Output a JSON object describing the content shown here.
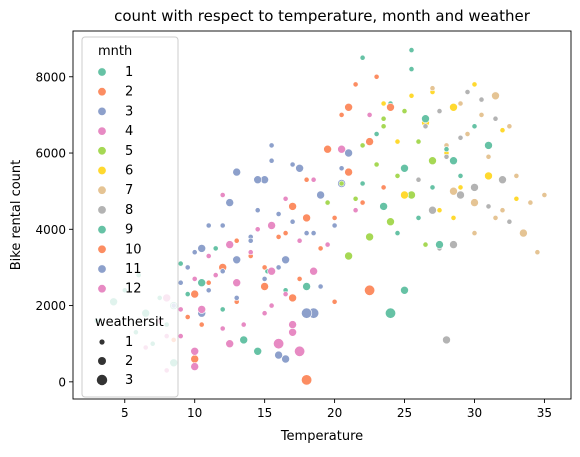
{
  "chart_data": {
    "type": "scatter",
    "title": "count with respect to temperature, month and weather",
    "xlabel": "Temperature",
    "ylabel": "Bike rental count",
    "xlim": [
      1.3,
      36.9
    ],
    "ylim": [
      -450,
      9200
    ],
    "xticks": [
      5,
      10,
      15,
      20,
      25,
      30,
      35
    ],
    "yticks": [
      0,
      2000,
      4000,
      6000,
      8000
    ],
    "grid": false,
    "legend": {
      "placement": "upper-left",
      "hue_title": "mnth",
      "size_title": "weathersit",
      "months": [
        {
          "label": "1",
          "color": "#66c2a5"
        },
        {
          "label": "2",
          "color": "#fc8d62"
        },
        {
          "label": "3",
          "color": "#8da0cb"
        },
        {
          "label": "4",
          "color": "#e78ac3"
        },
        {
          "label": "5",
          "color": "#a6d854"
        },
        {
          "label": "6",
          "color": "#ffd92f"
        },
        {
          "label": "7",
          "color": "#e5c494"
        },
        {
          "label": "8",
          "color": "#b3b3b3"
        },
        {
          "label": "9",
          "color": "#66c2a5"
        },
        {
          "label": "10",
          "color": "#fc8d62"
        },
        {
          "label": "11",
          "color": "#8da0cb"
        },
        {
          "label": "12",
          "color": "#e78ac3"
        }
      ],
      "weathersit": [
        {
          "label": "1",
          "level": 1
        },
        {
          "label": "2",
          "level": 2
        },
        {
          "label": "3",
          "level": 3
        }
      ]
    },
    "series": [
      {
        "mnth": 1,
        "points": [
          [
            3.0,
            1600,
            1
          ],
          [
            4.2,
            2100,
            2
          ],
          [
            5.0,
            2400,
            1
          ],
          [
            5.8,
            1300,
            1
          ],
          [
            6.5,
            1800,
            2
          ],
          [
            7.0,
            1000,
            1
          ],
          [
            7.5,
            2200,
            1
          ],
          [
            8.0,
            1500,
            1
          ],
          [
            8.5,
            2000,
            2
          ],
          [
            9.0,
            3100,
            1
          ],
          [
            9.5,
            2300,
            1
          ],
          [
            10.5,
            2600,
            2
          ],
          [
            11.5,
            3500,
            1
          ],
          [
            12.0,
            1900,
            1
          ],
          [
            13.5,
            1100,
            2
          ],
          [
            14.5,
            800,
            2
          ],
          [
            15.2,
            2900,
            1
          ],
          [
            16.5,
            2400,
            1
          ],
          [
            18.0,
            2500,
            2
          ],
          [
            8.5,
            500,
            2
          ],
          [
            6.0,
            2800,
            1
          ]
        ]
      },
      {
        "mnth": 2,
        "points": [
          [
            8.5,
            1100,
            1
          ],
          [
            9.5,
            1700,
            1
          ],
          [
            10.0,
            2300,
            2
          ],
          [
            10.5,
            1500,
            1
          ],
          [
            11.0,
            2600,
            1
          ],
          [
            12.0,
            3000,
            2
          ],
          [
            13.0,
            2100,
            1
          ],
          [
            14.0,
            3300,
            1
          ],
          [
            15.0,
            2500,
            2
          ],
          [
            16.5,
            3900,
            1
          ],
          [
            17.5,
            2700,
            1
          ],
          [
            18.0,
            4300,
            2
          ],
          [
            10.0,
            600,
            2
          ],
          [
            13.0,
            3700,
            1
          ],
          [
            18.0,
            50,
            3
          ]
        ]
      },
      {
        "mnth": 3,
        "points": [
          [
            8.5,
            2000,
            1
          ],
          [
            9.5,
            3000,
            1
          ],
          [
            10.5,
            3500,
            2
          ],
          [
            11.0,
            2400,
            1
          ],
          [
            12.0,
            4100,
            1
          ],
          [
            13.0,
            3200,
            2
          ],
          [
            14.0,
            3800,
            1
          ],
          [
            14.5,
            4500,
            1
          ],
          [
            15.0,
            5300,
            2
          ],
          [
            16.0,
            3000,
            1
          ],
          [
            17.0,
            4200,
            1
          ],
          [
            17.5,
            5600,
            2
          ],
          [
            18.5,
            3900,
            1
          ],
          [
            19.5,
            4700,
            1
          ],
          [
            20.5,
            5200,
            2
          ],
          [
            16.5,
            600,
            2
          ],
          [
            18.5,
            1800,
            3
          ],
          [
            15.5,
            5800,
            1
          ],
          [
            13.0,
            5500,
            2
          ],
          [
            19.0,
            2500,
            1
          ]
        ]
      },
      {
        "mnth": 4,
        "points": [
          [
            8.0,
            1200,
            1
          ],
          [
            9.0,
            1900,
            1
          ],
          [
            10.0,
            800,
            2
          ],
          [
            11.5,
            2800,
            1
          ],
          [
            12.5,
            3600,
            2
          ],
          [
            13.5,
            1500,
            1
          ],
          [
            14.5,
            4000,
            1
          ],
          [
            15.5,
            2900,
            2
          ],
          [
            16.5,
            4800,
            1
          ],
          [
            17.0,
            1500,
            2
          ],
          [
            18.5,
            5300,
            1
          ],
          [
            19.5,
            3600,
            1
          ],
          [
            20.5,
            6100,
            2
          ],
          [
            21.5,
            4500,
            1
          ],
          [
            22.5,
            7000,
            1
          ],
          [
            10.0,
            400,
            2
          ],
          [
            15.5,
            2000,
            1
          ],
          [
            17.5,
            800,
            3
          ],
          [
            12.0,
            4900,
            1
          ]
        ]
      },
      {
        "mnth": 5,
        "points": [
          [
            19.5,
            4700,
            1
          ],
          [
            20.5,
            5200,
            1
          ],
          [
            21.0,
            3300,
            2
          ],
          [
            21.5,
            4800,
            1
          ],
          [
            22.0,
            6200,
            1
          ],
          [
            22.5,
            3800,
            2
          ],
          [
            23.0,
            5700,
            1
          ],
          [
            23.5,
            6700,
            1
          ],
          [
            24.0,
            4200,
            2
          ],
          [
            24.5,
            5400,
            1
          ],
          [
            25.0,
            7100,
            1
          ],
          [
            25.5,
            4900,
            2
          ],
          [
            26.0,
            6300,
            1
          ],
          [
            26.5,
            3600,
            1
          ],
          [
            27.0,
            5800,
            2
          ],
          [
            23.5,
            6900,
            1
          ]
        ]
      },
      {
        "mnth": 6,
        "points": [
          [
            23.5,
            7300,
            1
          ],
          [
            24.5,
            6300,
            1
          ],
          [
            25.0,
            4900,
            2
          ],
          [
            25.5,
            7500,
            1
          ],
          [
            26.0,
            5300,
            1
          ],
          [
            26.5,
            6800,
            2
          ],
          [
            27.0,
            7600,
            1
          ],
          [
            27.5,
            4500,
            1
          ],
          [
            28.0,
            6000,
            1
          ],
          [
            28.5,
            7200,
            2
          ],
          [
            29.0,
            5100,
            1
          ],
          [
            29.5,
            6500,
            1
          ],
          [
            30.0,
            7800,
            1
          ],
          [
            31.0,
            5400,
            2
          ],
          [
            32.0,
            6600,
            1
          ],
          [
            33.0,
            4800,
            1
          ],
          [
            30.5,
            7000,
            1
          ],
          [
            28.5,
            4300,
            1
          ]
        ]
      },
      {
        "mnth": 7,
        "points": [
          [
            27.0,
            7700,
            1
          ],
          [
            28.0,
            6200,
            1
          ],
          [
            28.5,
            5000,
            2
          ],
          [
            29.0,
            7300,
            1
          ],
          [
            29.5,
            6500,
            1
          ],
          [
            30.0,
            4700,
            2
          ],
          [
            30.5,
            7000,
            1
          ],
          [
            31.0,
            5900,
            1
          ],
          [
            31.5,
            7500,
            2
          ],
          [
            32.0,
            4500,
            1
          ],
          [
            32.5,
            6700,
            1
          ],
          [
            33.0,
            5400,
            1
          ],
          [
            33.5,
            3900,
            2
          ],
          [
            34.0,
            4700,
            1
          ],
          [
            35.0,
            4900,
            1
          ],
          [
            34.5,
            3400,
            1
          ],
          [
            30.0,
            3900,
            1
          ],
          [
            31.5,
            4300,
            1
          ]
        ]
      },
      {
        "mnth": 8,
        "points": [
          [
            26.0,
            5300,
            1
          ],
          [
            26.5,
            6700,
            1
          ],
          [
            27.0,
            4500,
            2
          ],
          [
            27.5,
            7100,
            1
          ],
          [
            28.0,
            5900,
            1
          ],
          [
            28.5,
            3600,
            2
          ],
          [
            29.0,
            6400,
            1
          ],
          [
            29.5,
            7600,
            1
          ],
          [
            30.0,
            5100,
            2
          ],
          [
            30.5,
            7400,
            1
          ],
          [
            31.0,
            4600,
            1
          ],
          [
            31.5,
            6900,
            1
          ],
          [
            32.0,
            5300,
            2
          ],
          [
            32.5,
            4200,
            1
          ],
          [
            27.5,
            3500,
            1
          ],
          [
            28.0,
            1100,
            2
          ],
          [
            29.0,
            4900,
            2
          ]
        ]
      },
      {
        "mnth": 9,
        "points": [
          [
            22.0,
            5200,
            1
          ],
          [
            23.0,
            6500,
            1
          ],
          [
            23.5,
            4600,
            2
          ],
          [
            24.0,
            7300,
            1
          ],
          [
            24.5,
            3900,
            1
          ],
          [
            25.0,
            5600,
            2
          ],
          [
            25.5,
            8200,
            1
          ],
          [
            26.0,
            4300,
            1
          ],
          [
            26.5,
            6900,
            2
          ],
          [
            27.0,
            5100,
            1
          ],
          [
            27.5,
            3600,
            2
          ],
          [
            28.0,
            6100,
            1
          ],
          [
            28.5,
            5800,
            2
          ],
          [
            29.0,
            5400,
            1
          ],
          [
            30.0,
            6700,
            1
          ],
          [
            31.0,
            6200,
            2
          ],
          [
            25.0,
            2400,
            2
          ],
          [
            24.0,
            1800,
            3
          ],
          [
            25.5,
            8700,
            1
          ],
          [
            22.0,
            8500,
            1
          ]
        ]
      },
      {
        "mnth": 10,
        "points": [
          [
            15.0,
            3000,
            1
          ],
          [
            16.0,
            3800,
            1
          ],
          [
            17.0,
            4600,
            2
          ],
          [
            18.0,
            5300,
            1
          ],
          [
            19.0,
            3500,
            1
          ],
          [
            19.5,
            6100,
            2
          ],
          [
            20.0,
            4300,
            1
          ],
          [
            20.5,
            7000,
            1
          ],
          [
            21.0,
            5500,
            2
          ],
          [
            21.5,
            7800,
            1
          ],
          [
            22.0,
            4700,
            1
          ],
          [
            22.5,
            6300,
            2
          ],
          [
            23.0,
            8000,
            1
          ],
          [
            23.5,
            5100,
            1
          ],
          [
            24.0,
            7200,
            2
          ],
          [
            20.0,
            2100,
            1
          ],
          [
            22.5,
            2400,
            3
          ],
          [
            17.0,
            2200,
            2
          ],
          [
            21.0,
            7200,
            2
          ]
        ]
      },
      {
        "mnth": 11,
        "points": [
          [
            9.0,
            2600,
            1
          ],
          [
            10.0,
            3400,
            1
          ],
          [
            10.5,
            1800,
            2
          ],
          [
            11.0,
            4100,
            1
          ],
          [
            12.0,
            2900,
            1
          ],
          [
            12.5,
            4700,
            2
          ],
          [
            13.0,
            2200,
            1
          ],
          [
            14.0,
            3700,
            1
          ],
          [
            14.5,
            5300,
            2
          ],
          [
            15.0,
            2700,
            1
          ],
          [
            16.0,
            4400,
            1
          ],
          [
            16.5,
            3200,
            2
          ],
          [
            17.0,
            5700,
            1
          ],
          [
            18.0,
            3900,
            1
          ],
          [
            19.0,
            4900,
            2
          ],
          [
            20.0,
            4100,
            1
          ],
          [
            16.0,
            700,
            2
          ],
          [
            18.0,
            1800,
            3
          ],
          [
            20.5,
            5600,
            1
          ],
          [
            15.5,
            6200,
            1
          ],
          [
            21.0,
            6000,
            2
          ]
        ]
      },
      {
        "mnth": 12,
        "points": [
          [
            6.5,
            900,
            1
          ],
          [
            7.5,
            1600,
            1
          ],
          [
            8.0,
            2200,
            2
          ],
          [
            9.0,
            1200,
            1
          ],
          [
            10.0,
            2700,
            1
          ],
          [
            10.5,
            1900,
            2
          ],
          [
            11.0,
            3300,
            1
          ],
          [
            12.0,
            1400,
            1
          ],
          [
            13.0,
            2600,
            2
          ],
          [
            14.0,
            3400,
            1
          ],
          [
            15.0,
            1800,
            1
          ],
          [
            15.5,
            4100,
            2
          ],
          [
            16.5,
            2300,
            1
          ],
          [
            17.5,
            3700,
            1
          ],
          [
            18.5,
            2900,
            2
          ],
          [
            12.5,
            1000,
            2
          ],
          [
            16.0,
            1000,
            3
          ],
          [
            17.0,
            1300,
            2
          ],
          [
            8.0,
            300,
            1
          ]
        ]
      }
    ]
  }
}
